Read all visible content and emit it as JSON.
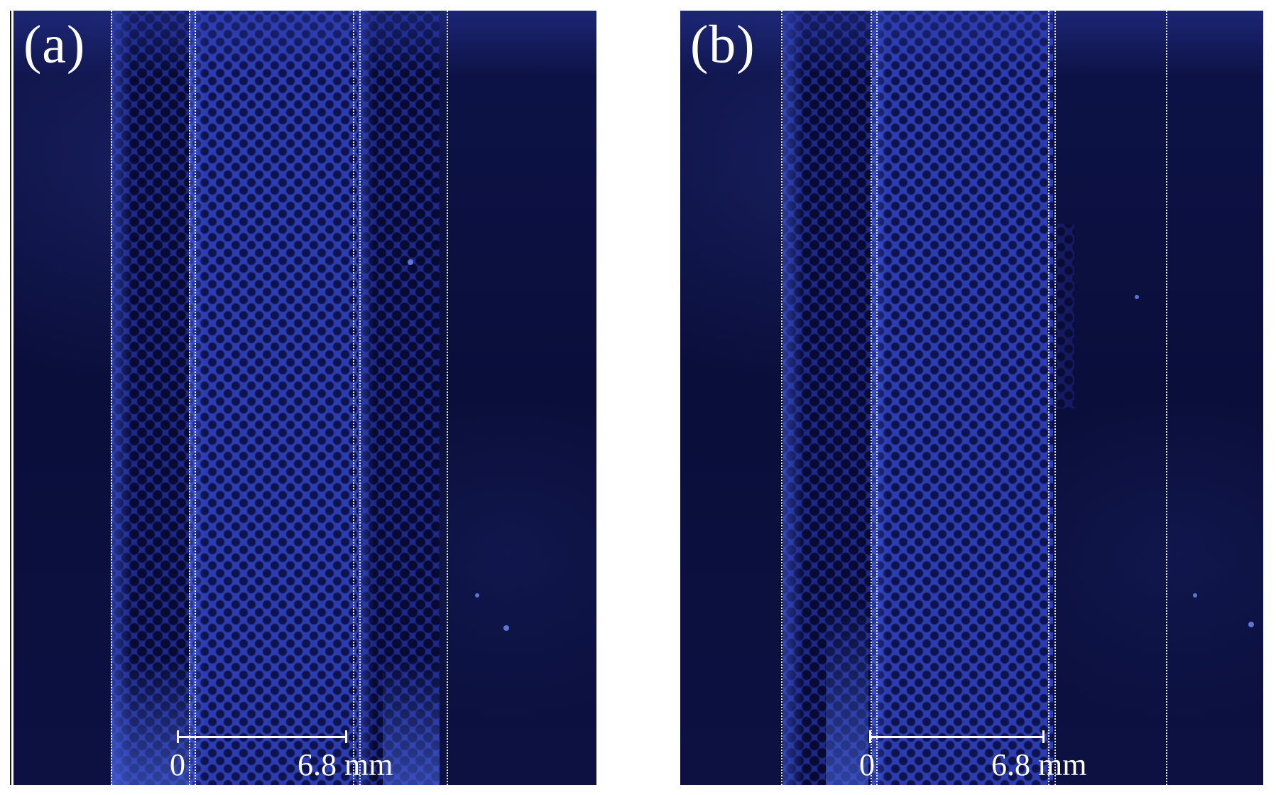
{
  "panels": [
    {
      "label": "(a)",
      "scale_start": "0",
      "scale_end": "6.8 mm"
    },
    {
      "label": "(b)",
      "scale_start": "0",
      "scale_end": "6.8 mm"
    }
  ],
  "colors": {
    "background": "#0b0f3e",
    "mesh_fluorescence": "#2c3db0",
    "guide_lines": "#e8e8ff",
    "annotation_text": "#ffffff"
  }
}
